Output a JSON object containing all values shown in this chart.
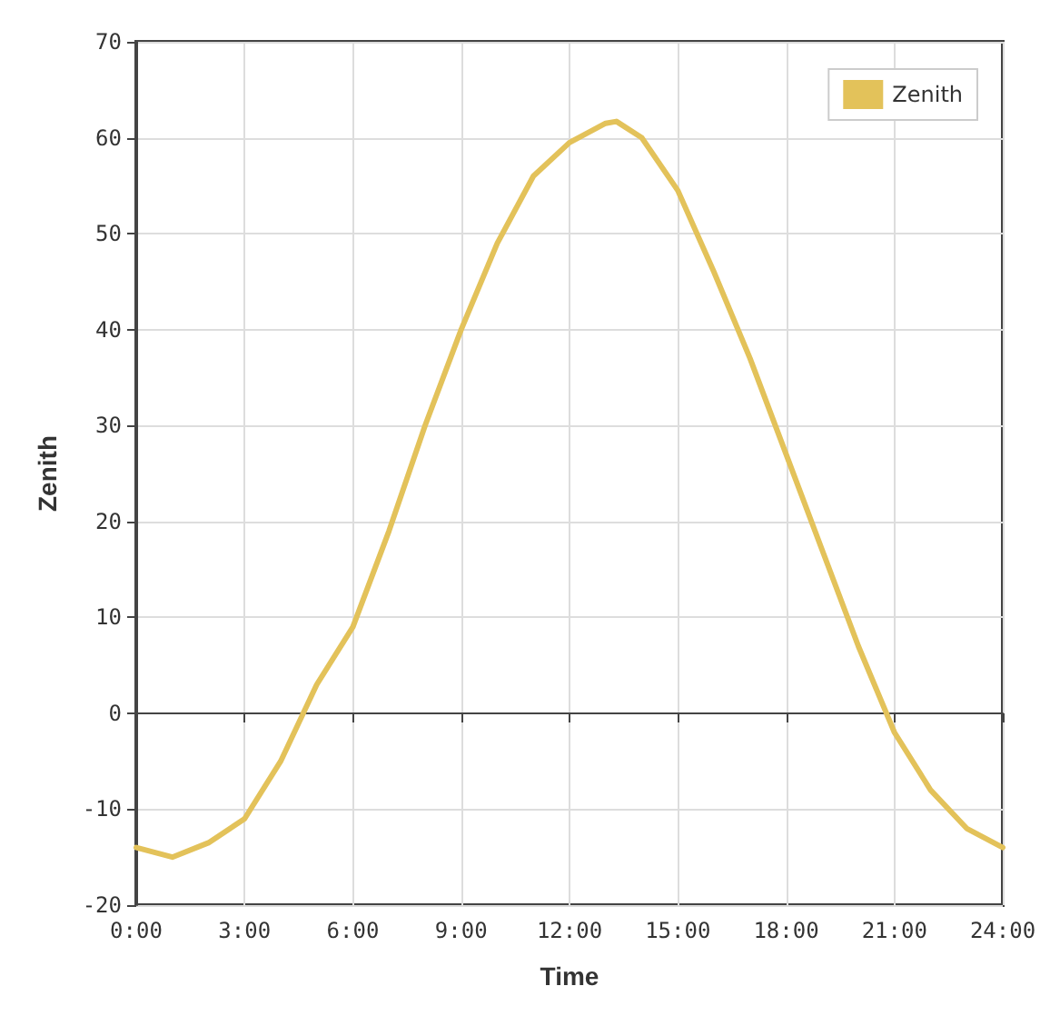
{
  "chart_data": {
    "type": "line",
    "xlabel": "Time",
    "ylabel": "Zenith",
    "x": [
      0,
      1,
      2,
      3,
      4,
      5,
      6,
      7,
      8,
      9,
      10,
      11,
      12,
      13,
      13.3,
      14,
      15,
      16,
      17,
      18,
      19,
      20,
      21,
      22,
      23,
      24
    ],
    "series": [
      {
        "name": "Zenith",
        "color": "#e3c25a",
        "values": [
          -14,
          -15,
          -13.5,
          -11,
          -5,
          3,
          9,
          19,
          30,
          40,
          49,
          56,
          59.5,
          61.5,
          61.7,
          60,
          54.5,
          46,
          37,
          27,
          17,
          7,
          -2,
          -8,
          -12,
          -14
        ]
      }
    ],
    "xlim": [
      0,
      24
    ],
    "ylim": [
      -20,
      70
    ],
    "xticks": [
      {
        "value": 0,
        "label": "0:00"
      },
      {
        "value": 3,
        "label": "3:00"
      },
      {
        "value": 6,
        "label": "6:00"
      },
      {
        "value": 9,
        "label": "9:00"
      },
      {
        "value": 12,
        "label": "12:00"
      },
      {
        "value": 15,
        "label": "15:00"
      },
      {
        "value": 18,
        "label": "18:00"
      },
      {
        "value": 21,
        "label": "21:00"
      },
      {
        "value": 24,
        "label": "24:00"
      }
    ],
    "yticks": [
      -20,
      -10,
      0,
      10,
      20,
      30,
      40,
      50,
      60,
      70
    ],
    "grid": true,
    "legend": "top right",
    "marker": "none",
    "line_style": "solid"
  }
}
